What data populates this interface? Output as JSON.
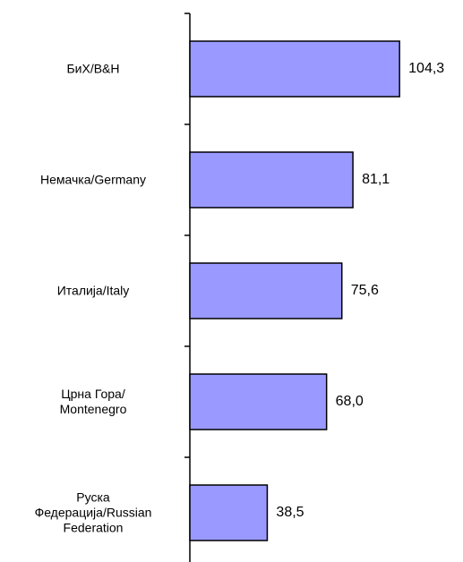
{
  "chart_data": {
    "type": "barh",
    "categories": [
      "БиХ/B&H",
      "Немачка/Germany",
      "Италија/Italy",
      "Црна Гора/\nMontenegro",
      "Руска\nФедерација/Russian\nFederation"
    ],
    "values": [
      104.3,
      81.1,
      75.6,
      68.0,
      38.5
    ],
    "value_labels": [
      "104,3",
      "81,1",
      "75,6",
      "68,0",
      "38,5"
    ],
    "color": "#9999ff"
  }
}
